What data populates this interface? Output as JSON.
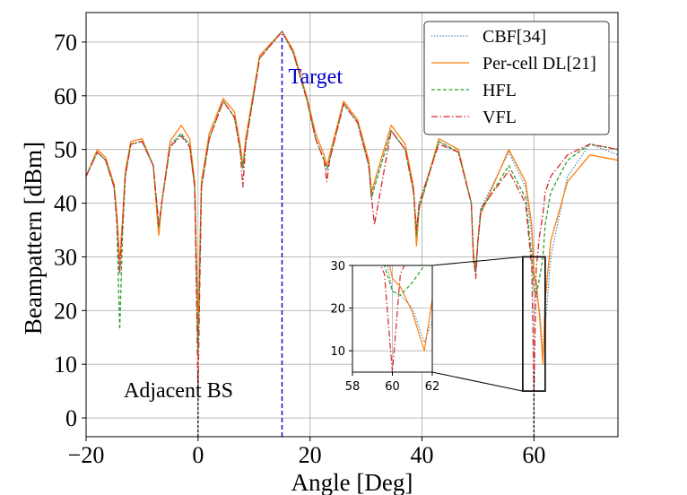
{
  "chart_data": {
    "type": "line",
    "title": "",
    "xlabel": "Angle [Deg]",
    "ylabel": "Beampattern [dBm]",
    "xlim": [
      -20,
      75
    ],
    "ylim": [
      -3.5,
      75.5
    ],
    "grid": true,
    "x_ticks": [
      -20,
      0,
      20,
      40,
      60
    ],
    "x_tick_labels": [
      "−20",
      "0",
      "20",
      "40",
      "60"
    ],
    "y_ticks": [
      0,
      10,
      20,
      30,
      40,
      50,
      60,
      70
    ],
    "y_tick_labels": [
      "0",
      "10",
      "20",
      "30",
      "40",
      "50",
      "60",
      "70"
    ],
    "legend_position": "top-right",
    "series": [
      {
        "name": "CBF[34]",
        "color": "#1f77b4",
        "dash": "dotted",
        "x": [
          -20,
          -18,
          -16.5,
          -15,
          -14.5,
          -14,
          -13.5,
          -13,
          -12,
          -10,
          -8,
          -7.2,
          -7,
          -6.5,
          -5,
          -3,
          -1.5,
          -0.6,
          0,
          0.6,
          2,
          4.5,
          6.5,
          7.5,
          8,
          8.5,
          11,
          15,
          17,
          19.5,
          21,
          22.5,
          23,
          23.5,
          26,
          28.5,
          30.5,
          31,
          31.5,
          34.5,
          37,
          38.5,
          39,
          39.5,
          43,
          46.5,
          48.8,
          49.2,
          49.6,
          50,
          50.5,
          55.5,
          58.5,
          59.6,
          60,
          60.4,
          61,
          61.6,
          62,
          63,
          66,
          70,
          75
        ],
        "y": [
          45,
          49.5,
          48,
          43,
          37,
          27,
          36,
          45,
          51,
          51.5,
          47,
          37,
          35,
          40,
          51,
          53,
          51,
          43,
          14,
          43,
          52,
          59,
          56,
          50,
          46.5,
          51,
          67,
          72,
          68,
          59,
          52,
          48,
          46,
          48,
          58.5,
          55,
          47,
          41,
          43,
          53.5,
          50,
          42,
          35,
          40,
          51.5,
          49.5,
          40,
          29,
          27,
          33,
          39,
          49.5,
          43,
          34,
          24,
          23,
          20,
          12,
          17,
          30,
          45,
          51,
          49
        ]
      },
      {
        "name": "Per-cell DL[21]",
        "color": "#ff7f0e",
        "dash": "solid",
        "x": [
          -20,
          -18,
          -16.5,
          -15,
          -14.5,
          -14,
          -13.5,
          -13,
          -12,
          -10,
          -8,
          -7.2,
          -7,
          -6.5,
          -5,
          -3,
          -1.5,
          -0.6,
          0,
          0.6,
          2,
          4.5,
          6.5,
          7.5,
          8,
          8.5,
          11,
          15,
          17,
          19.5,
          21,
          22.5,
          23,
          23.5,
          26,
          28.5,
          30.5,
          31,
          31.5,
          34.5,
          37,
          38.5,
          39,
          39.5,
          43,
          46.5,
          48.8,
          49.2,
          49.6,
          50,
          50.5,
          55.5,
          58.5,
          59.6,
          60,
          60.4,
          61,
          61.6,
          62,
          63,
          66,
          70,
          75
        ],
        "y": [
          45,
          50,
          48.5,
          43.5,
          38,
          29,
          37,
          46,
          51.5,
          52,
          47,
          36,
          34,
          40,
          51.5,
          54.5,
          52,
          44,
          16,
          44,
          53,
          59.5,
          57,
          51,
          47,
          52,
          67.5,
          72,
          68.5,
          59.5,
          53,
          49,
          47,
          49,
          59,
          55.5,
          48,
          42,
          44,
          54.5,
          51,
          43,
          32,
          39,
          52,
          50,
          40,
          29,
          28,
          33,
          38,
          50,
          44,
          36,
          27,
          25,
          19,
          10,
          22,
          33,
          44,
          49,
          48
        ]
      },
      {
        "name": "HFL",
        "color": "#2ca02c",
        "dash": "dashed",
        "x": [
          -20,
          -18,
          -16.5,
          -15,
          -14.5,
          -14,
          -13.5,
          -13,
          -12,
          -10,
          -8,
          -7.2,
          -7,
          -6.5,
          -5,
          -3,
          -1.5,
          -0.6,
          0,
          0.6,
          2,
          4.5,
          6.5,
          7.5,
          8,
          8.5,
          11,
          15,
          17,
          19.5,
          21,
          22.5,
          23,
          23.5,
          26,
          28.5,
          30.5,
          31,
          31.5,
          34.5,
          37,
          38.5,
          39,
          39.5,
          43,
          46.5,
          48.8,
          49.2,
          49.6,
          50,
          50.5,
          55.5,
          58.5,
          59.6,
          60,
          60.4,
          61,
          61.6,
          62,
          63,
          66,
          70,
          75
        ],
        "y": [
          45,
          49.5,
          48,
          43,
          36,
          16.5,
          34,
          45,
          51,
          51.5,
          47,
          38,
          35.5,
          40,
          50.5,
          53,
          50.5,
          43,
          12,
          43,
          52,
          59,
          56,
          50,
          46.5,
          51,
          67,
          72,
          68,
          59,
          52,
          48,
          46.5,
          48,
          58.5,
          55,
          47,
          41,
          43,
          53.5,
          50,
          42,
          34,
          39,
          51.5,
          49.5,
          40,
          30,
          28,
          33,
          38.5,
          47,
          41,
          30,
          24,
          23,
          26,
          30,
          36,
          42,
          48,
          51,
          50
        ]
      },
      {
        "name": "VFL",
        "color": "#d62728",
        "dash": "dashdot",
        "x": [
          -20,
          -18,
          -16.5,
          -15,
          -14.5,
          -14,
          -13.5,
          -13,
          -12,
          -10,
          -8,
          -7.2,
          -7,
          -6.5,
          -5,
          -3,
          -1.5,
          -0.6,
          0,
          0.6,
          2,
          4.5,
          6.5,
          7.5,
          8,
          8.5,
          11,
          15,
          17,
          19.5,
          21,
          22.5,
          23,
          23.5,
          26,
          28.5,
          30.5,
          31,
          31.5,
          34.5,
          37,
          38.5,
          39,
          39.5,
          43,
          46.5,
          48.8,
          49.2,
          49.6,
          50,
          50.5,
          55.5,
          58.5,
          59.6,
          60,
          60.4,
          61,
          61.6,
          62,
          63,
          66,
          70,
          75
        ],
        "y": [
          45,
          49.5,
          48,
          43,
          37,
          27,
          36,
          45,
          51,
          51.5,
          47,
          38,
          36,
          40,
          50.5,
          52.5,
          50.5,
          43,
          5,
          43,
          52,
          59,
          56,
          50,
          43,
          51,
          67,
          72,
          68,
          59,
          52,
          48,
          44,
          48,
          58.5,
          55,
          47,
          41,
          36,
          53.5,
          50,
          42,
          35,
          40,
          51,
          49.5,
          40,
          30,
          26,
          33,
          39,
          46,
          40,
          28,
          5,
          28,
          34,
          38,
          42,
          45,
          49,
          51,
          50
        ]
      }
    ],
    "annotations": {
      "target": {
        "label": "Target",
        "x": 15,
        "color": "#0000cc"
      },
      "adjacent_bs": {
        "label": "Adjacent BS",
        "x_values": [
          0,
          60
        ],
        "color": "#000000"
      }
    },
    "inset": {
      "xlim": [
        58,
        62
      ],
      "ylim": [
        5,
        30
      ],
      "x_ticks": [
        58,
        60,
        62
      ],
      "x_tick_labels": [
        "58",
        "60",
        "62"
      ],
      "y_ticks": [
        10,
        20,
        30
      ],
      "y_tick_labels": [
        "10",
        "20",
        "30"
      ],
      "source_box": {
        "x": [
          58,
          62
        ],
        "y": [
          5,
          30
        ]
      }
    }
  }
}
